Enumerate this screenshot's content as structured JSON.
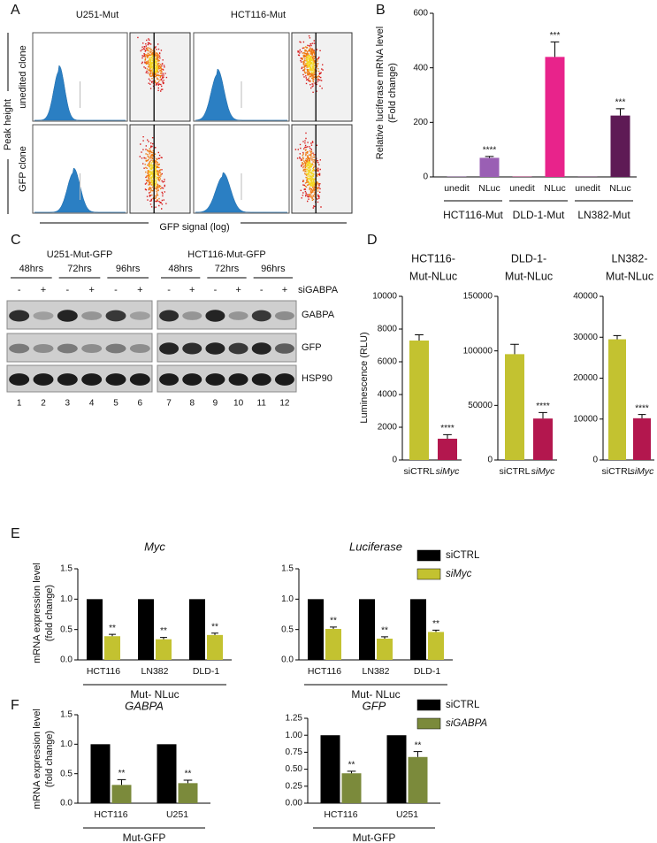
{
  "panel_labels": [
    "A",
    "B",
    "C",
    "D",
    "E",
    "F"
  ],
  "flow": {
    "columns": [
      "U251-Mut",
      "HCT116-Mut"
    ],
    "rows": [
      "unedited clone",
      "GFP clone"
    ],
    "y_label": "Peak height",
    "x_label": "GFP signal (log)"
  },
  "blot": {
    "cell_lines": [
      "U251-Mut-GFP",
      "HCT116-Mut-GFP"
    ],
    "timepoints": [
      "48hrs",
      "72hrs",
      "96hrs"
    ],
    "treatment_signs": [
      "-",
      "+"
    ],
    "treatment": "siGABPA",
    "proteins": [
      "GABPA",
      "GFP",
      "HSP90"
    ],
    "lanes": [
      "1",
      "2",
      "3",
      "4",
      "5",
      "6",
      "7",
      "8",
      "9",
      "10",
      "11",
      "12"
    ]
  },
  "chart_data": [
    {
      "type": "bar",
      "ylabel": [
        "Relative luciferase mRNA level",
        "(Fold change)"
      ],
      "categories": [
        "unedit",
        "NLuc",
        "unedit",
        "NLuc",
        "unedit",
        "NLuc"
      ],
      "groups": [
        "HCT116-Mut",
        "DLD-1-Mut",
        "LN382-Mut"
      ],
      "values": [
        1,
        70,
        1,
        440,
        1,
        225
      ],
      "errors": [
        null,
        5,
        null,
        55,
        null,
        25
      ],
      "annotations": [
        null,
        "****",
        null,
        "***",
        null,
        "***"
      ],
      "colors": [
        "#9a5fb4",
        "#9a5fb4",
        "#e8238b",
        "#e8238b",
        "#5e1a55",
        "#5e1a55"
      ],
      "ylim": [
        0,
        600
      ],
      "yticks": [
        0,
        200,
        400,
        600
      ]
    },
    {
      "type": "bar",
      "title": [
        "HCT116-",
        "Mut-NLuc"
      ],
      "ylabel": [
        "Luminescence (RLU)"
      ],
      "categories": [
        "siCTRL",
        "siMyc"
      ],
      "category_italic": [
        false,
        true
      ],
      "values": [
        7300,
        1300
      ],
      "errors": [
        350,
        250
      ],
      "annotations": [
        null,
        "****"
      ],
      "colors": [
        "#c3c230",
        "#b3174e"
      ],
      "ylim": [
        0,
        10000
      ],
      "yticks": [
        0,
        2000,
        4000,
        6000,
        8000,
        10000
      ]
    },
    {
      "type": "bar",
      "title": [
        "DLD-1-",
        "Mut-NLuc"
      ],
      "categories": [
        "siCTRL",
        "siMyc"
      ],
      "category_italic": [
        false,
        true
      ],
      "values": [
        97000,
        38000
      ],
      "errors": [
        9000,
        5500
      ],
      "annotations": [
        null,
        "****"
      ],
      "colors": [
        "#c3c230",
        "#b3174e"
      ],
      "ylim": [
        0,
        150000
      ],
      "yticks": [
        0,
        50000,
        100000,
        150000
      ]
    },
    {
      "type": "bar",
      "title": [
        "LN382-",
        "Mut-NLuc"
      ],
      "categories": [
        "siCTRL",
        "siMyc"
      ],
      "category_italic": [
        false,
        true
      ],
      "values": [
        29500,
        10200
      ],
      "errors": [
        900,
        900
      ],
      "annotations": [
        null,
        "****"
      ],
      "colors": [
        "#c3c230",
        "#b3174e"
      ],
      "ylim": [
        0,
        40000
      ],
      "yticks": [
        0,
        10000,
        20000,
        30000,
        40000
      ]
    },
    {
      "type": "grouped_bar",
      "title": "Myc",
      "title_italic": true,
      "ylabel": [
        "mRNA expression level",
        "(fold change)"
      ],
      "categories": [
        "HCT116",
        "LN382",
        "DLD-1"
      ],
      "group_label": "Mut- NLuc",
      "series": [
        {
          "color": "#000000",
          "values": [
            1,
            1,
            1
          ]
        },
        {
          "color": "#c3c230",
          "values": [
            0.39,
            0.34,
            0.41
          ],
          "errors": [
            0.03,
            0.03,
            0.03
          ],
          "annotations": [
            "**",
            "**",
            "**"
          ]
        }
      ],
      "ylim": [
        0,
        1.5
      ],
      "yticks": [
        {
          "value": 0,
          "label": "0.0"
        },
        {
          "value": 0.5,
          "label": "0.5"
        },
        {
          "value": 1,
          "label": "1.0"
        },
        1.5
      ]
    },
    {
      "type": "grouped_bar",
      "title": "Luciferase",
      "title_italic": true,
      "categories": [
        "HCT116",
        "LN382",
        "DLD-1"
      ],
      "group_label": "Mut- NLuc",
      "legend": "right",
      "series": [
        {
          "name": "siCTRL",
          "color": "#000000",
          "values": [
            1,
            1,
            1
          ]
        },
        {
          "name": "siMyc",
          "italic": true,
          "color": "#c3c230",
          "values": [
            0.51,
            0.35,
            0.46
          ],
          "errors": [
            0.03,
            0.03,
            0.03
          ],
          "annotations": [
            "**",
            "**",
            "**"
          ]
        }
      ],
      "ylim": [
        0,
        1.5
      ],
      "yticks": [
        {
          "value": 0,
          "label": "0.0"
        },
        {
          "value": 0.5,
          "label": "0.5"
        },
        {
          "value": 1,
          "label": "1.0"
        },
        1.5
      ]
    },
    {
      "type": "grouped_bar",
      "title": "GABPA",
      "title_italic": true,
      "ylabel": [
        "mRNA expression level",
        "(fold change)"
      ],
      "categories": [
        "HCT116",
        "U251"
      ],
      "group_label": "Mut-GFP",
      "series": [
        {
          "color": "#000000",
          "values": [
            1,
            1
          ]
        },
        {
          "color": "#7b8a3b",
          "values": [
            0.31,
            0.34
          ],
          "errors": [
            0.09,
            0.05
          ],
          "annotations": [
            "**",
            "**"
          ]
        }
      ],
      "ylim": [
        0,
        1.5
      ],
      "yticks": [
        {
          "value": 0,
          "label": "0.0"
        },
        {
          "value": 0.5,
          "label": "0.5"
        },
        {
          "value": 1,
          "label": "1.0"
        },
        1.5
      ]
    },
    {
      "type": "grouped_bar",
      "title": "GFP",
      "title_italic": true,
      "categories": [
        "HCT116",
        "U251"
      ],
      "group_label": "Mut-GFP",
      "legend": "right",
      "series": [
        {
          "name": "siCTRL",
          "color": "#000000",
          "values": [
            1,
            1
          ]
        },
        {
          "name": "siGABPA",
          "italic": true,
          "color": "#7b8a3b",
          "values": [
            0.44,
            0.68
          ],
          "errors": [
            0.03,
            0.08
          ],
          "annotations": [
            "**",
            "**"
          ]
        }
      ],
      "ylim": [
        0,
        1.25
      ],
      "yticks": [
        {
          "value": 0,
          "label": "0.00"
        },
        {
          "value": 0.25,
          "label": "0.25"
        },
        {
          "value": 0.5,
          "label": "0.50"
        },
        {
          "value": 0.75,
          "label": "0.75"
        },
        {
          "value": 1,
          "label": "1.00"
        },
        1.25
      ]
    }
  ]
}
